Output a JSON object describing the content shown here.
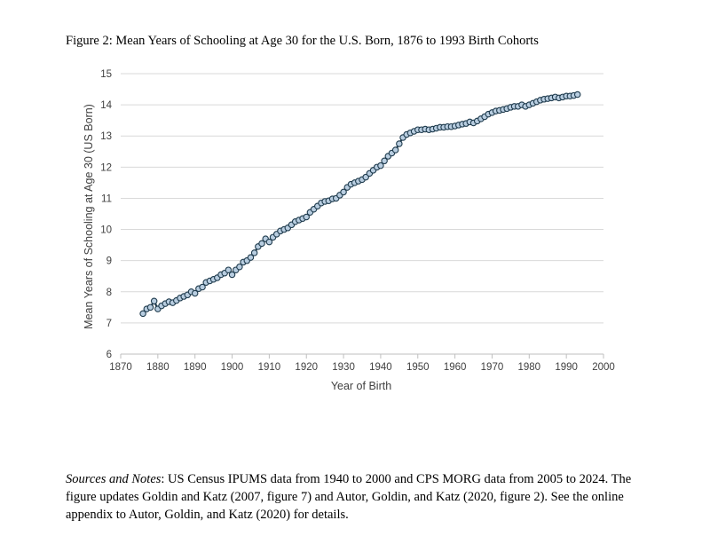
{
  "title": "Figure 2: Mean Years of Schooling at Age 30 for the U.S. Born, 1876 to 1993 Birth Cohorts",
  "notes": {
    "label": "Sources and Notes",
    "text": ": US Census IPUMS data from 1940 to 2000 and CPS MORG data from 2005 to 2024. The figure updates Goldin and Katz (2007, figure 7) and Autor, Goldin, and Katz (2020, figure 2). See the online appendix to Autor, Goldin, and Katz (2020) for details."
  },
  "chart_data": {
    "type": "line",
    "xlabel": "Year of Birth",
    "ylabel": "Mean Years of Schooling at Age 30 (US Born)",
    "xlim": [
      1870,
      2000
    ],
    "ylim": [
      6,
      15
    ],
    "xticks": [
      1870,
      1880,
      1890,
      1900,
      1910,
      1920,
      1930,
      1940,
      1950,
      1960,
      1970,
      1980,
      1990,
      2000
    ],
    "yticks": [
      6,
      7,
      8,
      9,
      10,
      11,
      12,
      13,
      14,
      15
    ],
    "grid": "horizontal",
    "line_color": "#1f3b4d",
    "marker": "circle",
    "x": [
      1876,
      1877,
      1878,
      1879,
      1880,
      1881,
      1882,
      1883,
      1884,
      1885,
      1886,
      1887,
      1888,
      1889,
      1890,
      1891,
      1892,
      1893,
      1894,
      1895,
      1896,
      1897,
      1898,
      1899,
      1900,
      1901,
      1902,
      1903,
      1904,
      1905,
      1906,
      1907,
      1908,
      1909,
      1910,
      1911,
      1912,
      1913,
      1914,
      1915,
      1916,
      1917,
      1918,
      1919,
      1920,
      1921,
      1922,
      1923,
      1924,
      1925,
      1926,
      1927,
      1928,
      1929,
      1930,
      1931,
      1932,
      1933,
      1934,
      1935,
      1936,
      1937,
      1938,
      1939,
      1940,
      1941,
      1942,
      1943,
      1944,
      1945,
      1946,
      1947,
      1948,
      1949,
      1950,
      1951,
      1952,
      1953,
      1954,
      1955,
      1956,
      1957,
      1958,
      1959,
      1960,
      1961,
      1962,
      1963,
      1964,
      1965,
      1966,
      1967,
      1968,
      1969,
      1970,
      1971,
      1972,
      1973,
      1974,
      1975,
      1976,
      1977,
      1978,
      1979,
      1980,
      1981,
      1982,
      1983,
      1984,
      1985,
      1986,
      1987,
      1988,
      1989,
      1990,
      1991,
      1992,
      1993
    ],
    "y": [
      7.3,
      7.45,
      7.5,
      7.7,
      7.45,
      7.55,
      7.62,
      7.68,
      7.65,
      7.72,
      7.8,
      7.85,
      7.9,
      8.0,
      7.95,
      8.1,
      8.15,
      8.3,
      8.35,
      8.4,
      8.45,
      8.55,
      8.6,
      8.7,
      8.55,
      8.7,
      8.8,
      8.95,
      9.0,
      9.1,
      9.25,
      9.45,
      9.55,
      9.7,
      9.6,
      9.75,
      9.85,
      9.95,
      10.0,
      10.05,
      10.15,
      10.25,
      10.3,
      10.35,
      10.4,
      10.55,
      10.65,
      10.75,
      10.85,
      10.9,
      10.92,
      10.98,
      11.0,
      11.1,
      11.2,
      11.35,
      11.45,
      11.5,
      11.55,
      11.6,
      11.68,
      11.8,
      11.9,
      12.0,
      12.05,
      12.2,
      12.35,
      12.45,
      12.55,
      12.75,
      12.95,
      13.05,
      13.1,
      13.15,
      13.2,
      13.2,
      13.22,
      13.2,
      13.22,
      13.25,
      13.28,
      13.28,
      13.3,
      13.3,
      13.32,
      13.35,
      13.38,
      13.4,
      13.45,
      13.42,
      13.48,
      13.55,
      13.62,
      13.7,
      13.75,
      13.8,
      13.82,
      13.85,
      13.88,
      13.92,
      13.95,
      13.95,
      14.0,
      13.95,
      14.0,
      14.05,
      14.1,
      14.15,
      14.18,
      14.2,
      14.22,
      14.25,
      14.22,
      14.25,
      14.28,
      14.28,
      14.3,
      14.33
    ]
  }
}
